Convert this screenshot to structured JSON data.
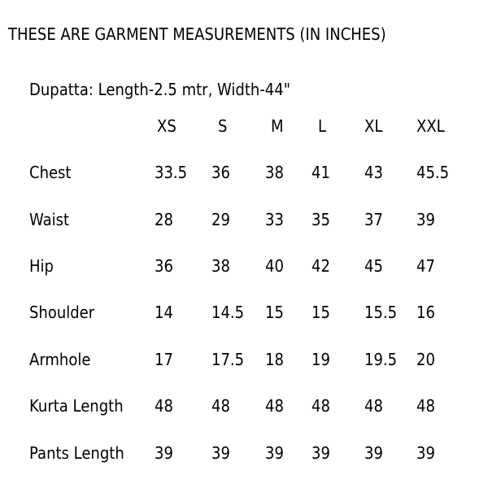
{
  "title": "THESE ARE GARMENT MEASUREMENTS (IN INCHES)",
  "dupatta": "Dupatta: Length-2.5 mtr, Width-44\"",
  "sizes": [
    "XS",
    "S",
    "M",
    "L",
    "XL",
    "XXL"
  ],
  "rows": [
    {
      "label": "Chest",
      "values": [
        "33.5",
        "36",
        "38",
        "41",
        "43",
        "45.5"
      ]
    },
    {
      "label": "Waist",
      "values": [
        "28",
        "29",
        "33",
        "35",
        "37",
        "39"
      ]
    },
    {
      "label": "Hip",
      "values": [
        "36",
        "38",
        "40",
        "42",
        "45",
        "47"
      ]
    },
    {
      "label": "Shoulder",
      "values": [
        "14",
        "14.5",
        "15",
        "15",
        "15.5",
        "16"
      ]
    },
    {
      "label": "Armhole",
      "values": [
        "17",
        "17.5",
        "18",
        "19",
        "19.5",
        "20"
      ]
    },
    {
      "label": "Kurta Length",
      "values": [
        "48",
        "48",
        "48",
        "48",
        "48",
        "48"
      ]
    },
    {
      "label": "Pants Length",
      "values": [
        "39",
        "39",
        "39",
        "39",
        "39",
        "39"
      ]
    }
  ]
}
